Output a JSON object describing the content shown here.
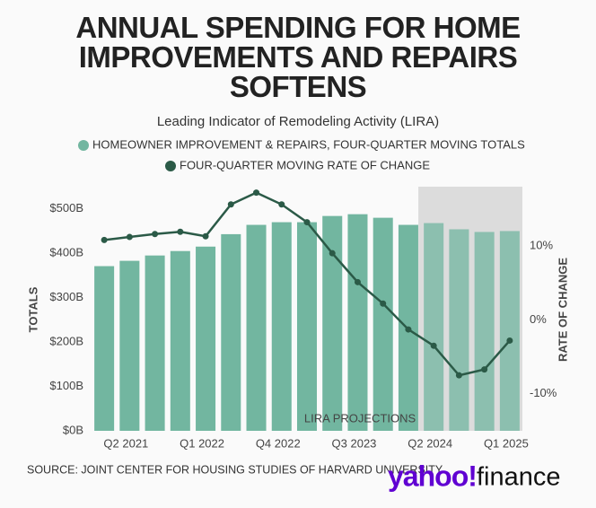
{
  "chart_data": {
    "type": "bar",
    "title": "ANNUAL SPENDING FOR HOME IMPROVEMENTS AND REPAIRS SOFTENS",
    "subtitle": "Leading Indicator of Remodeling Activity (LIRA)",
    "categories": [
      null,
      "Q2 2021",
      null,
      null,
      "Q1 2022",
      null,
      null,
      "Q4 2022",
      null,
      null,
      "Q3 2023",
      null,
      null,
      "Q2 2024",
      null,
      null,
      "Q1 2025"
    ],
    "series": [
      {
        "name": "HOMEOWNER IMPROVEMENT & REPAIRS, FOUR-QUARTER MOVING TOTALS",
        "type": "bar",
        "color": "#72b6a0",
        "values": [
          371,
          383,
          395,
          405,
          415,
          443,
          464,
          470,
          470,
          484,
          488,
          480,
          464,
          468,
          454,
          448,
          450
        ]
      },
      {
        "name": "FOUR-QUARTER MOVING RATE OF CHANGE",
        "type": "line",
        "axis": "y2",
        "color": "#2b5a47",
        "values": [
          10.8,
          11.2,
          11.6,
          11.9,
          11.3,
          15.6,
          17.2,
          15.6,
          13.2,
          9.0,
          5.1,
          2.2,
          -1.3,
          -3.5,
          -7.5,
          -6.7,
          -2.8
        ]
      }
    ],
    "ylim": [
      0,
      550
    ],
    "yticks": [
      {
        "value": 0,
        "label": "$0B"
      },
      {
        "value": 100,
        "label": "$100B"
      },
      {
        "value": 200,
        "label": "$200B"
      },
      {
        "value": 300,
        "label": "$300B"
      },
      {
        "value": 400,
        "label": "$400B"
      },
      {
        "value": 500,
        "label": "$500B"
      }
    ],
    "y2lim": [
      -15,
      18
    ],
    "y2ticks": [
      {
        "value": -10,
        "label": "-10%"
      },
      {
        "value": 0,
        "label": "0%"
      },
      {
        "value": 10,
        "label": "10%"
      }
    ],
    "ylabel": "TOTALS",
    "y2label": "RATE OF CHANGE",
    "projection_start": 13,
    "annotation": "LIRA PROJECTIONS"
  },
  "source": "SOURCE: JOINT CENTER FOR HOUSING STUDIES OF HARVARD UNIVERSITY",
  "logo": {
    "brand": "yahoo!",
    "product": "finance"
  }
}
